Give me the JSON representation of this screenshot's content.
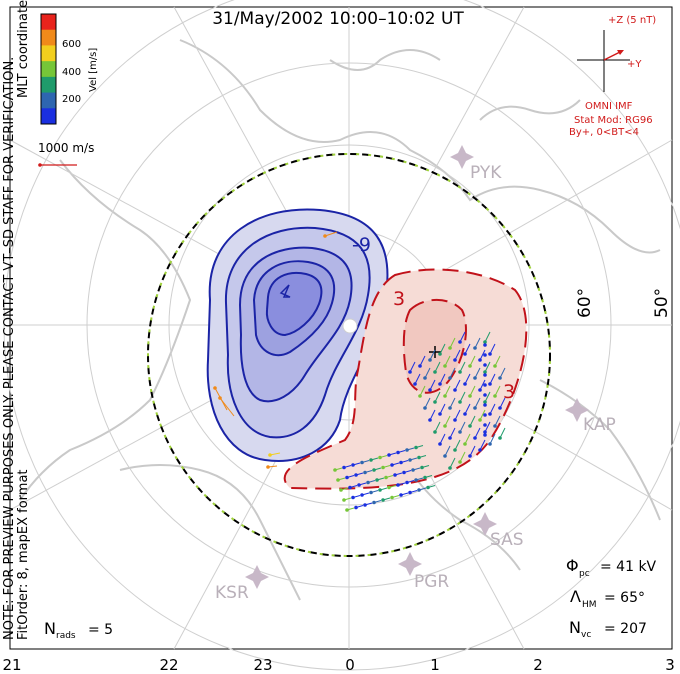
{
  "title": "31/May/2002 10:00–10:02 UT",
  "side_left": {
    "mlt_coordinates": "MLT coordinates",
    "note": "NOTE: FOR PREVIEW PURPOSES ONLY. PLEASE CONTACT VT–SD STAFF FOR VERIFICATION.",
    "fitorder": "FitOrder: 8, mapEX format"
  },
  "colorbar": {
    "label": "Vel [m/s]",
    "ticks": [
      "600",
      "400",
      "200"
    ],
    "colors": [
      "#e8231c",
      "#f08a1a",
      "#f2cf1e",
      "#76c638",
      "#1f9b6b",
      "#2e66b0",
      "#1a2fe0"
    ]
  },
  "vector_scale": {
    "label": "1000 m/s",
    "color": "#d11b1b"
  },
  "imf": {
    "z_label": "+Z (5 nT)",
    "y_label": "+Y",
    "source": "OMNI IMF",
    "model": "Stat Mod: RG96",
    "condition": "By+, 0<BT<4"
  },
  "latitudes": [
    "60°",
    "50°"
  ],
  "stations": [
    "PYK",
    "KAP",
    "SAS",
    "PGR",
    "KSR"
  ],
  "contour_labels": {
    "negative": "-9",
    "positive": "3"
  },
  "stats": {
    "phi_symbol": "Φ",
    "phi_sub": "pc",
    "phi_value": "= 41 kV",
    "lambda_symbol": "Λ",
    "lambda_sub": "HM",
    "lambda_value": "= 65°",
    "nvc_symbol": "N",
    "nvc_sub": "vc",
    "nvc_value": "= 207",
    "nrads_symbol": "N",
    "nrads_sub": "rads",
    "nrads_value": "= 5"
  },
  "mlt_axis": [
    "21",
    "22",
    "23",
    "0",
    "1",
    "2",
    "3"
  ]
}
